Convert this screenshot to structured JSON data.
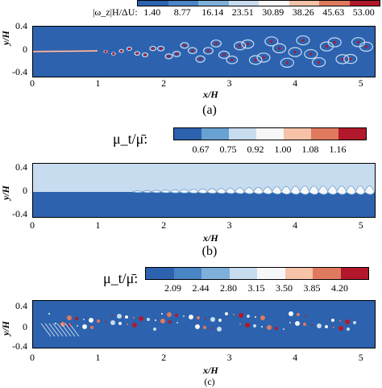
{
  "figures": [
    {
      "colorbar_title": "|ω_z|H/ΔU:",
      "colorbar_ticks": [
        "1.40",
        "8.77",
        "16.14",
        "23.51",
        "30.89",
        "38.26",
        "45.63",
        "53.00"
      ],
      "colorbar_colors": [
        "#2d62ae",
        "#4a85c5",
        "#7eb0da",
        "#c7dcef",
        "#f7f7f7",
        "#f6c2a8",
        "#e07a5f",
        "#b2182b"
      ],
      "background_color": "#2d62ae",
      "xlabel": "x/H",
      "ylabel": "y/H",
      "xticks": [
        "0",
        "1",
        "2",
        "3",
        "4",
        "5"
      ],
      "yticks": [
        "0.4",
        "0",
        "-0.4"
      ],
      "panel_label": "(a)"
    },
    {
      "colorbar_title": "μ_t/μ̄:",
      "colorbar_ticks": [
        "0.67",
        "0.75",
        "0.92",
        "1.00",
        "1.08",
        "1.16"
      ],
      "colorbar_colors": [
        "#2d62ae",
        "#6aa1d3",
        "#c7dcef",
        "#f7f7f7",
        "#f6c2a8",
        "#e07a5f",
        "#b2182b"
      ],
      "background_color": "#c7dcef",
      "xlabel": "x/H",
      "ylabel": "y/H",
      "xticks": [
        "0",
        "1",
        "2",
        "3",
        "4",
        "5"
      ],
      "yticks": [
        "0.4",
        "0",
        "-0.4"
      ],
      "panel_label": "(b)"
    },
    {
      "colorbar_title": "μ_t/μ̄:",
      "colorbar_ticks": [
        "2.09",
        "2.44",
        "2.80",
        "3.15",
        "3.50",
        "3.85",
        "4.20"
      ],
      "colorbar_colors": [
        "#2d62ae",
        "#4a85c5",
        "#7eb0da",
        "#c7dcef",
        "#f7f7f7",
        "#f6c2a8",
        "#e07a5f",
        "#b2182b"
      ],
      "background_color": "#2d62ae",
      "xlabel": "x/H",
      "ylabel": "y/H",
      "xticks": [
        "0",
        "1",
        "2",
        "3",
        "4",
        "5"
      ],
      "yticks": [
        "0.4",
        "0",
        "-0.4"
      ],
      "panel_label": "(c)"
    }
  ]
}
